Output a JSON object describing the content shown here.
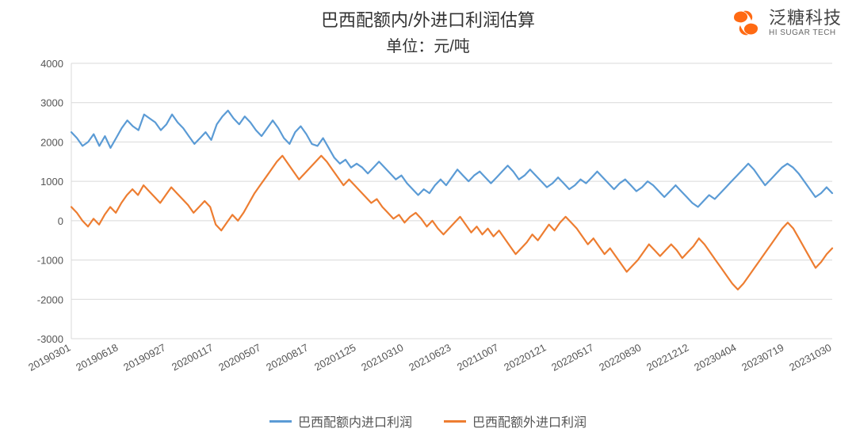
{
  "title": "巴西配额内/外进口利润估算",
  "subtitle": "单位：元/吨",
  "logo": {
    "cn": "泛糖科技",
    "en": "HI SUGAR TECH",
    "mark_color": "#ff6a13"
  },
  "chart": {
    "type": "line",
    "background_color": "#ffffff",
    "grid_color": "#d9d9d9",
    "axis_text_color": "#555555",
    "axis_fontsize": 14,
    "tick_fontsize": 13,
    "line_width": 2.2,
    "ylim": [
      -3000,
      4000
    ],
    "ytick_step": 1000,
    "yticks": [
      -3000,
      -2000,
      -1000,
      0,
      1000,
      2000,
      3000,
      4000
    ],
    "x_labels": [
      "20190301",
      "20190618",
      "20190927",
      "20200117",
      "20200507",
      "20200817",
      "20201125",
      "20210310",
      "20210623",
      "20211007",
      "20220121",
      "20220517",
      "20220830",
      "20221212",
      "20230404",
      "20230719",
      "20231030"
    ],
    "series": [
      {
        "name": "巴西配额内进口利润",
        "color": "#5b9bd5",
        "values": [
          2250,
          2100,
          1900,
          2000,
          2200,
          1900,
          2150,
          1850,
          2100,
          2350,
          2550,
          2400,
          2300,
          2700,
          2600,
          2500,
          2300,
          2450,
          2700,
          2500,
          2350,
          2150,
          1950,
          2100,
          2250,
          2050,
          2450,
          2650,
          2800,
          2600,
          2450,
          2650,
          2500,
          2300,
          2150,
          2350,
          2550,
          2350,
          2100,
          1950,
          2250,
          2400,
          2200,
          1950,
          1900,
          2100,
          1850,
          1600,
          1450,
          1550,
          1350,
          1450,
          1350,
          1200,
          1350,
          1500,
          1350,
          1200,
          1050,
          1150,
          950,
          800,
          650,
          800,
          700,
          900,
          1050,
          900,
          1100,
          1300,
          1150,
          1000,
          1150,
          1250,
          1100,
          950,
          1100,
          1250,
          1400,
          1250,
          1050,
          1150,
          1300,
          1150,
          1000,
          850,
          950,
          1100,
          950,
          800,
          900,
          1050,
          950,
          1100,
          1250,
          1100,
          950,
          800,
          950,
          1050,
          900,
          750,
          850,
          1000,
          900,
          750,
          600,
          750,
          900,
          750,
          600,
          450,
          350,
          500,
          650,
          550,
          700,
          850,
          1000,
          1150,
          1300,
          1450,
          1300,
          1100,
          900,
          1050,
          1200,
          1350,
          1450,
          1350,
          1200,
          1000,
          800,
          600,
          700,
          850,
          700
        ]
      },
      {
        "name": "巴西配额外进口利润",
        "color": "#ed7d31",
        "values": [
          350,
          200,
          0,
          -150,
          50,
          -100,
          150,
          350,
          200,
          450,
          650,
          800,
          650,
          900,
          750,
          600,
          450,
          650,
          850,
          700,
          550,
          400,
          200,
          350,
          500,
          350,
          -100,
          -250,
          -50,
          150,
          0,
          200,
          450,
          700,
          900,
          1100,
          1300,
          1500,
          1650,
          1450,
          1250,
          1050,
          1200,
          1350,
          1500,
          1650,
          1500,
          1300,
          1100,
          900,
          1050,
          900,
          750,
          600,
          450,
          550,
          350,
          200,
          50,
          150,
          -50,
          100,
          200,
          50,
          -150,
          0,
          -200,
          -350,
          -200,
          -50,
          100,
          -100,
          -300,
          -150,
          -350,
          -200,
          -400,
          -250,
          -450,
          -650,
          -850,
          -700,
          -550,
          -350,
          -500,
          -300,
          -100,
          -250,
          -50,
          100,
          -50,
          -200,
          -400,
          -600,
          -450,
          -650,
          -850,
          -700,
          -900,
          -1100,
          -1300,
          -1150,
          -1000,
          -800,
          -600,
          -750,
          -900,
          -750,
          -600,
          -750,
          -950,
          -800,
          -650,
          -450,
          -600,
          -800,
          -1000,
          -1200,
          -1400,
          -1600,
          -1750,
          -1600,
          -1400,
          -1200,
          -1000,
          -800,
          -600,
          -400,
          -200,
          -50,
          -200,
          -450,
          -700,
          -950,
          -1200,
          -1050,
          -850,
          -700
        ]
      }
    ]
  }
}
